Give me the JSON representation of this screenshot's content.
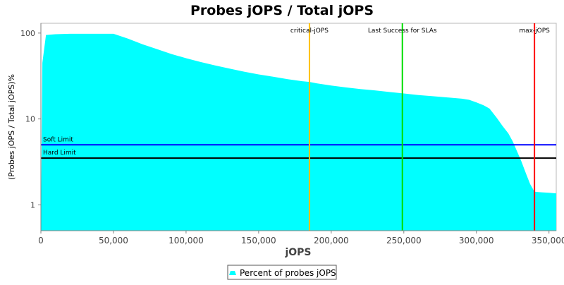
{
  "chart_data": {
    "type": "area",
    "title": "Probes jOPS / Total jOPS",
    "xlabel": "jOPS",
    "ylabel": "(Probes jOPS / Total jOPS)%",
    "y_scale": "log",
    "xlim": [
      0,
      355000
    ],
    "ylim": [
      0.5,
      130
    ],
    "x_ticks": [
      0,
      50000,
      100000,
      150000,
      200000,
      250000,
      300000,
      350000
    ],
    "x_tick_labels": [
      "0",
      "50,000",
      "100,000",
      "150,000",
      "200,000",
      "250,000",
      "300,000",
      "350,000"
    ],
    "y_ticks": [
      1,
      10,
      100
    ],
    "y_tick_labels": [
      "1",
      "10",
      "100"
    ],
    "grid": false,
    "legend_position": "bottom",
    "series": [
      {
        "name": "Percent of probes jOPS",
        "color": "#00ffff",
        "x": [
          0,
          1000,
          3500,
          10000,
          20000,
          30000,
          40000,
          50000,
          60000,
          70000,
          80000,
          90000,
          100000,
          110000,
          120000,
          130000,
          140000,
          150000,
          160000,
          170000,
          180000,
          185000,
          190000,
          200000,
          210000,
          220000,
          230000,
          240000,
          250000,
          260000,
          270000,
          280000,
          290000,
          295000,
          300000,
          305000,
          309000,
          314000,
          318000,
          322000,
          325000,
          328000,
          331000,
          334000,
          337000,
          340000,
          345000,
          350000,
          355000
        ],
        "y": [
          0.5,
          45,
          95,
          97,
          98,
          98,
          98,
          98,
          86,
          74,
          65,
          57,
          51,
          46,
          42,
          38.5,
          35.5,
          33,
          31,
          29,
          27.5,
          27,
          26,
          24.5,
          23.3,
          22.3,
          21.5,
          20.6,
          19.8,
          19,
          18.4,
          17.8,
          17.2,
          16.7,
          15.6,
          14.4,
          13.2,
          10.3,
          8.3,
          6.8,
          5.5,
          4.2,
          3.2,
          2.35,
          1.75,
          1.42,
          1.4,
          1.38,
          1.36
        ]
      }
    ],
    "markers": [
      {
        "label": "critical-jOPS",
        "x": 185000,
        "color": "#ffc000"
      },
      {
        "label": "Last Success for SLAs",
        "x": 249000,
        "color": "#00dd00"
      },
      {
        "label": "max-jOPS",
        "x": 340000,
        "color": "#ff0000"
      }
    ],
    "limits": [
      {
        "label": "Soft Limit",
        "y": 5,
        "color": "#0000ff"
      },
      {
        "label": "Hard Limit",
        "y": 3.5,
        "color": "#000000"
      }
    ]
  }
}
